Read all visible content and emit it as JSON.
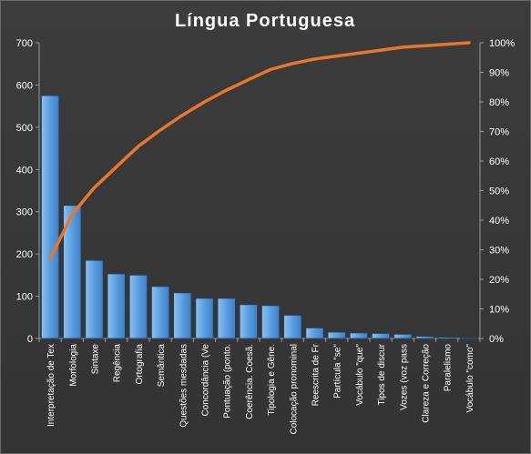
{
  "chart_data": {
    "type": "bar",
    "title": "Língua  Portuguesa",
    "categories": [
      "Interpretação de Tex",
      "Morfologia",
      "Sintaxe",
      "Regência",
      "Ortografia",
      "Semântica",
      "Questões mesdadas",
      "Concordância (Ve",
      "Pontuação (ponto.",
      "Coerência. Coesã.",
      "Tipologia e Gêne.",
      "Colocação pronominal",
      "Reescrita de Fr",
      "Partícula \"se\"",
      "Vocábulo \"que\"",
      "Tipos de discur",
      "Vozes (voz pass",
      "Clareza e Correção",
      "Paralelismo",
      "Vocábulo \"como\""
    ],
    "series": [
      {
        "type": "bar",
        "color": "#5b9bd5",
        "values": [
          575,
          315,
          185,
          153,
          150,
          123,
          108,
          95,
          95,
          80,
          78,
          55,
          25,
          15,
          13,
          12,
          10,
          5,
          3,
          2
        ]
      },
      {
        "type": "line",
        "axis": "right",
        "color": "#e8772e",
        "values": [
          27,
          42,
          51,
          58,
          65,
          70.5,
          75.5,
          80,
          84,
          87.5,
          91,
          93,
          94.5,
          95.5,
          96.5,
          97.5,
          98.5,
          99,
          99.5,
          100
        ]
      }
    ],
    "y_left": {
      "ylim": [
        0,
        700
      ],
      "ticks": [
        "0",
        "100",
        "200",
        "300",
        "400",
        "500",
        "600",
        "700"
      ]
    },
    "y_right": {
      "ylim": [
        0,
        100
      ],
      "ticks": [
        "0%",
        "10%",
        "20%",
        "30%",
        "40%",
        "50%",
        "60%",
        "70%",
        "80%",
        "90%",
        "100%"
      ]
    },
    "grid": false,
    "legend": "none"
  }
}
